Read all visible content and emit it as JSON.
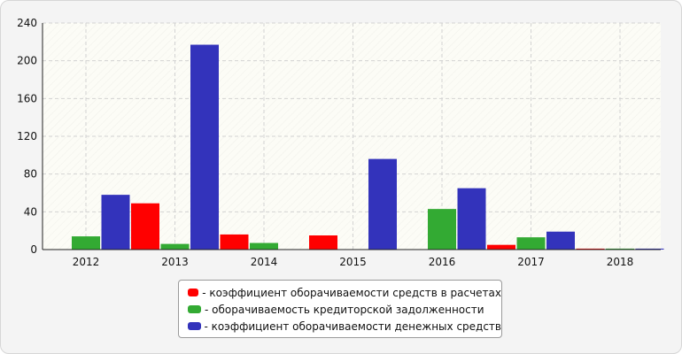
{
  "chart_data": {
    "type": "bar",
    "title": "",
    "xlabel": "",
    "ylabel": "",
    "categories": [
      "2012",
      "2013",
      "2014",
      "2015",
      "2016",
      "2017",
      "2018"
    ],
    "ylim": [
      0,
      240
    ],
    "yticks": [
      "0",
      "40",
      "80",
      "120",
      "160",
      "200",
      "240"
    ],
    "grid": true,
    "legend_position": "bottom-center",
    "series": [
      {
        "name": "- коэффициент оборачиваемости средств в расчетах",
        "color": "#ff0000",
        "values": [
          0,
          49,
          16,
          15,
          0,
          5,
          1
        ]
      },
      {
        "name": "- оборачиваемость кредиторской задолженности",
        "color": "#33aa33",
        "values": [
          14,
          6,
          7,
          0,
          43,
          13,
          1
        ]
      },
      {
        "name": "- коэффициент оборачиваемости денежных средств",
        "color": "#3333bb",
        "values": [
          58,
          217,
          0,
          96,
          65,
          19,
          1
        ]
      }
    ]
  }
}
